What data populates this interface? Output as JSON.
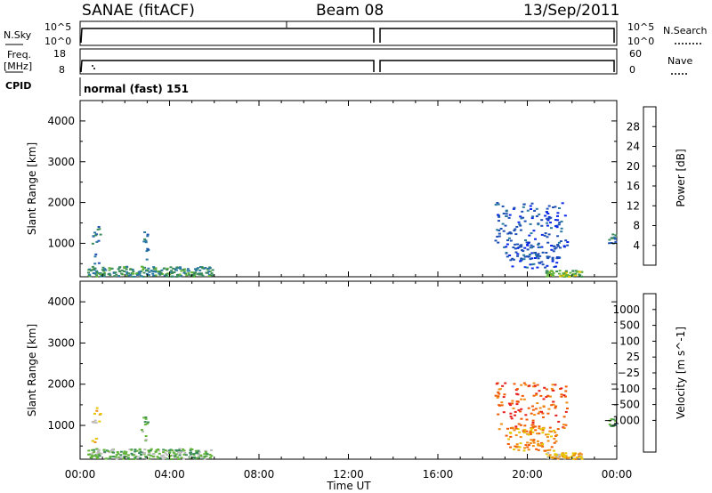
{
  "header": {
    "station": "SANAE (fitACF)",
    "beam": "Beam 08",
    "date": "13/Sep/2011"
  },
  "strip_labels": {
    "nsky": "N.Sky",
    "nsearch": "N.Search",
    "freq_line1": "Freq.",
    "freq_line2": "[MHz]",
    "cpid": "CPID",
    "nave": "Nave",
    "nsky_top": "10^5",
    "nsky_bottom": "10^0",
    "nsearch_top": "10^5",
    "nsearch_bottom": "10^0",
    "freq_top": "18",
    "freq_bottom": "8",
    "nave_top": "60",
    "nave_bottom": "0",
    "cpid_text": "normal (fast) 151"
  },
  "colors": {
    "power_scale": [
      "#0a28e8",
      "#1e50b4",
      "#2a78a0",
      "#3c8c5a",
      "#64b43c",
      "#e6c800",
      "#f08c14",
      "#f05a00",
      "#e61e1e"
    ],
    "velocity_scale": [
      "#e61e1e",
      "#f05a00",
      "#f08c14",
      "#e6c800",
      "#bebebe",
      "#64b43c",
      "#3c8c5a",
      "#2a78a0",
      "#1e50b4",
      "#0a28e8"
    ]
  },
  "chart_data": [
    {
      "type": "line",
      "title": "SANAE (fitACF)",
      "panel": "strip",
      "x_range_hours": [
        0,
        24
      ],
      "series": [
        {
          "name": "N.Sky",
          "note": "near-constant high level with data gap",
          "gap_hours": [
            13.15,
            13.45
          ]
        },
        {
          "name": "Freq.",
          "note": "near-constant about 11 MHz with data gap",
          "gap_hours": [
            13.15,
            13.45
          ]
        }
      ],
      "cpid_text": "normal (fast) 151"
    },
    {
      "type": "heatmap",
      "ylabel": "Slant Range [km]",
      "colorbar_label": "Power [dB]",
      "colorbar_ticks": [
        "4",
        "8",
        "12",
        "16",
        "20",
        "24",
        "28"
      ],
      "colorbar_range": [
        0,
        32
      ],
      "y_ticks": [
        "1000",
        "2000",
        "3000",
        "4000"
      ],
      "y_range_km": [
        180,
        4500
      ],
      "x_range_hours": [
        0,
        24
      ],
      "features": [
        {
          "t_start": 0.5,
          "t_end": 0.9,
          "r_min": 500,
          "r_max": 1450,
          "level": 2
        },
        {
          "t_start": 2.7,
          "t_end": 3.0,
          "r_min": 600,
          "r_max": 1350,
          "level": 2
        },
        {
          "t_start": 0.3,
          "t_end": 5.9,
          "r_min": 200,
          "r_max": 450,
          "level": 3
        },
        {
          "t_start": 18.5,
          "t_end": 21.8,
          "r_min": 900,
          "r_max": 2050,
          "level": 1
        },
        {
          "t_start": 19.0,
          "t_end": 21.4,
          "r_min": 400,
          "r_max": 1000,
          "level": 1
        },
        {
          "t_start": 20.8,
          "t_end": 22.4,
          "r_min": 200,
          "r_max": 350,
          "level": 4
        },
        {
          "t_start": 23.6,
          "t_end": 23.9,
          "r_min": 1000,
          "r_max": 1250,
          "level": 2
        }
      ]
    },
    {
      "type": "heatmap",
      "xlabel": "Time UT",
      "ylabel": "Slant Range [km]",
      "colorbar_label": "Velocity [m s^-1]",
      "colorbar_ticks": [
        "1000",
        "500",
        "100",
        "25",
        "−25",
        "−100",
        "−500",
        "−1000"
      ],
      "y_ticks": [
        "1000",
        "2000",
        "3000",
        "4000"
      ],
      "y_range_km": [
        180,
        4500
      ],
      "x_ticks": [
        "00:00",
        "04:00",
        "08:00",
        "12:00",
        "16:00",
        "20:00",
        "00:00"
      ],
      "x_range_hours": [
        0,
        24
      ],
      "features": [
        {
          "t_start": 0.5,
          "t_end": 0.9,
          "r_min": 500,
          "r_max": 1450,
          "level": 3
        },
        {
          "t_start": 2.7,
          "t_end": 3.0,
          "r_min": 600,
          "r_max": 1350,
          "level": 5
        },
        {
          "t_start": 0.3,
          "t_end": 5.9,
          "r_min": 200,
          "r_max": 450,
          "level": 5
        },
        {
          "t_start": 18.5,
          "t_end": 21.8,
          "r_min": 900,
          "r_max": 2050,
          "level": 1
        },
        {
          "t_start": 19.0,
          "t_end": 21.4,
          "r_min": 400,
          "r_max": 1000,
          "level": 2
        },
        {
          "t_start": 20.8,
          "t_end": 22.4,
          "r_min": 200,
          "r_max": 350,
          "level": 3
        },
        {
          "t_start": 23.6,
          "t_end": 23.9,
          "r_min": 1000,
          "r_max": 1250,
          "level": 6
        }
      ]
    }
  ]
}
